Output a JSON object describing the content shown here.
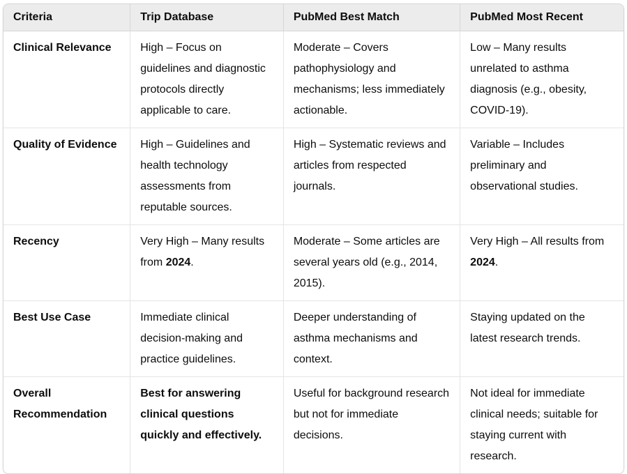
{
  "colors": {
    "page_background": "#ffffff",
    "header_background": "#ececec",
    "outer_border": "#d6d6d6",
    "grid_line": "#e4e4e4",
    "text": "#0d0d0d"
  },
  "table": {
    "columns": [
      "Criteria",
      "Trip Database",
      "PubMed Best Match",
      "PubMed Most Recent"
    ],
    "rows": [
      {
        "criterion": "Clinical Relevance",
        "cells": [
          [
            {
              "text": "High – Focus on guidelines and diagnostic protocols directly applicable to care.",
              "bold": false
            }
          ],
          [
            {
              "text": "Moderate – Covers pathophysiology and mechanisms; less immediately actionable.",
              "bold": false
            }
          ],
          [
            {
              "text": "Low – Many results unrelated to asthma diagnosis (e.g., obesity, COVID-19).",
              "bold": false
            }
          ]
        ]
      },
      {
        "criterion": "Quality of Evidence",
        "cells": [
          [
            {
              "text": "High – Guidelines and health technology assessments from reputable sources.",
              "bold": false
            }
          ],
          [
            {
              "text": "High – Systematic reviews and articles from respected journals.",
              "bold": false
            }
          ],
          [
            {
              "text": "Variable – Includes preliminary and observational studies.",
              "bold": false
            }
          ]
        ]
      },
      {
        "criterion": "Recency",
        "cells": [
          [
            {
              "text": "Very High – Many results from ",
              "bold": false
            },
            {
              "text": "2024",
              "bold": true
            },
            {
              "text": ".",
              "bold": false
            }
          ],
          [
            {
              "text": "Moderate – Some articles are several years old (e.g., 2014, 2015).",
              "bold": false
            }
          ],
          [
            {
              "text": "Very High – All results from ",
              "bold": false
            },
            {
              "text": "2024",
              "bold": true
            },
            {
              "text": ".",
              "bold": false
            }
          ]
        ]
      },
      {
        "criterion": "Best Use Case",
        "cells": [
          [
            {
              "text": "Immediate clinical decision-making and practice guidelines.",
              "bold": false
            }
          ],
          [
            {
              "text": "Deeper understanding of asthma mechanisms and context.",
              "bold": false
            }
          ],
          [
            {
              "text": "Staying updated on the latest research trends.",
              "bold": false
            }
          ]
        ]
      },
      {
        "criterion": "Overall Recommendation",
        "cells": [
          [
            {
              "text": "Best for answering clinical questions quickly and effectively.",
              "bold": true
            }
          ],
          [
            {
              "text": "Useful for background research but not for immediate decisions.",
              "bold": false
            }
          ],
          [
            {
              "text": "Not ideal for immediate clinical needs; suitable for staying current with research.",
              "bold": false
            }
          ]
        ]
      }
    ]
  }
}
